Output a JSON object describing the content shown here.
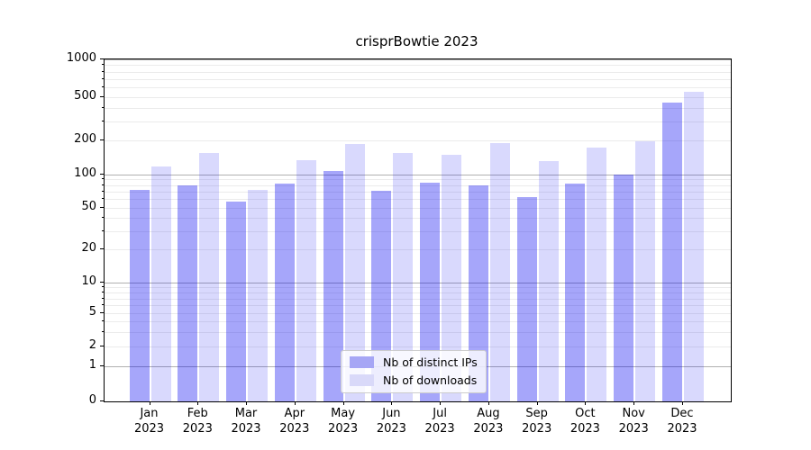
{
  "title": "crisprBowtie 2023",
  "chart_data": {
    "type": "bar",
    "title": "crisprBowtie 2023",
    "xlabel": "",
    "ylabel": "",
    "yscale": "symlog",
    "ylim": [
      0,
      1000
    ],
    "yticks": [
      1000,
      500,
      200,
      100,
      50,
      20,
      10,
      5,
      2,
      1,
      0
    ],
    "grid": "horizontal minor+major gridlines",
    "legend_position": "lower center",
    "year": "2023",
    "months": [
      "Jan",
      "Feb",
      "Mar",
      "Apr",
      "May",
      "Jun",
      "Jul",
      "Aug",
      "Sep",
      "Oct",
      "Nov",
      "Dec"
    ],
    "categories": [
      "Jan 2023",
      "Feb 2023",
      "Mar 2023",
      "Apr 2023",
      "May 2023",
      "Jun 2023",
      "Jul 2023",
      "Aug 2023",
      "Sep 2023",
      "Oct 2023",
      "Nov 2023",
      "Dec 2023"
    ],
    "series": [
      {
        "name": "Nb of distinct IPs",
        "color": "#a6a6f5",
        "values": [
          72,
          80,
          57,
          83,
          108,
          71,
          84,
          79,
          63,
          83,
          100,
          445
        ]
      },
      {
        "name": "Nb of downloads",
        "color": "#d9d9f9",
        "values": [
          117,
          155,
          72,
          134,
          186,
          156,
          148,
          190,
          132,
          174,
          197,
          550
        ]
      }
    ]
  }
}
